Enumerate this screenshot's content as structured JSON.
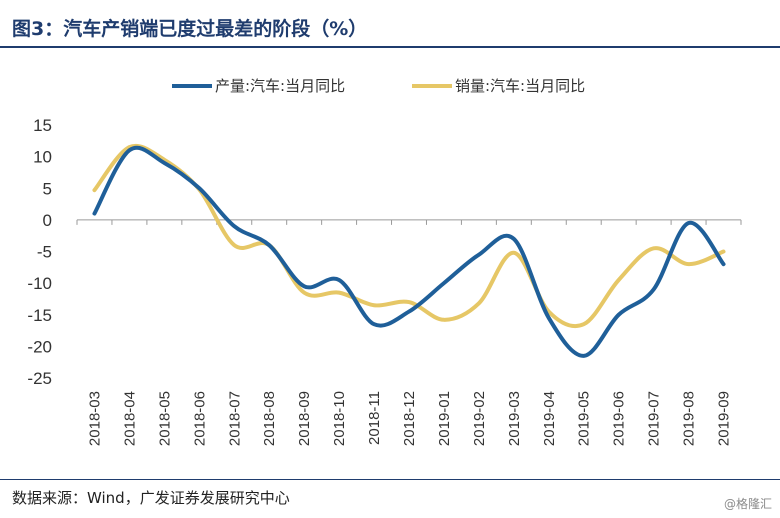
{
  "header": {
    "title": "图3：汽车产销端已度过最差的阶段（%）"
  },
  "footer": {
    "source": "数据来源：Wind，广发证券发展研究中心",
    "watermark": "@格隆汇"
  },
  "colors": {
    "title": "#1f3c6e",
    "production": "#1f5f99",
    "sales": "#e6c766"
  },
  "chart_data": {
    "type": "line",
    "title": "",
    "xlabel": "",
    "ylabel": "",
    "ylim": [
      -25,
      15
    ],
    "yticks": [
      15,
      10,
      5,
      0,
      -5,
      -10,
      -15,
      -20,
      -25
    ],
    "legend_position": "top",
    "grid": false,
    "categories": [
      "2018-03",
      "2018-04",
      "2018-05",
      "2018-06",
      "2018-07",
      "2018-08",
      "2018-09",
      "2018-10",
      "2018-11",
      "2018-12",
      "2019-01",
      "2019-02",
      "2019-03",
      "2019-04",
      "2019-05",
      "2019-06",
      "2019-07",
      "2019-08",
      "2019-09"
    ],
    "series": [
      {
        "name": "产量:汽车:当月同比",
        "color": "#1f5f99",
        "values": [
          1,
          11,
          9,
          5,
          -1,
          -4,
          -10.5,
          -9.5,
          -16.5,
          -14.5,
          -10,
          -5.5,
          -3,
          -15.5,
          -21.5,
          -15,
          -11,
          -0.5,
          -7
        ]
      },
      {
        "name": "销量:汽车:当月同比",
        "color": "#e6c766",
        "values": [
          4.7,
          11.5,
          9.5,
          4.8,
          -4,
          -4,
          -11.5,
          -11.5,
          -13.5,
          -13,
          -15.8,
          -13.2,
          -5.2,
          -14.5,
          -16.5,
          -9.5,
          -4.5,
          -7,
          -5
        ]
      }
    ]
  }
}
